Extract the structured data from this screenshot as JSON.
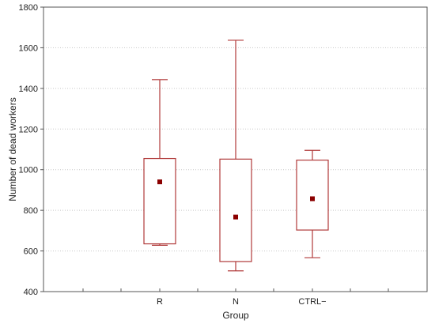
{
  "chart_data": {
    "type": "box",
    "xlabel": "Group",
    "ylabel": "Number of dead workers",
    "ylim": [
      400,
      1800
    ],
    "yticks": [
      400,
      600,
      800,
      1000,
      1200,
      1400,
      1600,
      1800
    ],
    "grid": "horizontal-dotted",
    "categories": [
      "R",
      "N",
      "CTRL−"
    ],
    "boxes": [
      {
        "category": "R",
        "whisker_low": 628,
        "q1": 635,
        "q3": 1055,
        "whisker_high": 1443,
        "center": 940
      },
      {
        "category": "N",
        "whisker_low": 502,
        "q1": 548,
        "q3": 1052,
        "whisker_high": 1637,
        "center": 767
      },
      {
        "category": "CTRL−",
        "whisker_low": 567,
        "q1": 703,
        "q3": 1047,
        "whisker_high": 1095,
        "center": 857
      }
    ],
    "colors": {
      "box": "#b03a3a",
      "center": "#8b0000",
      "grid": "#c8c8c8",
      "axis": "#555555"
    }
  }
}
